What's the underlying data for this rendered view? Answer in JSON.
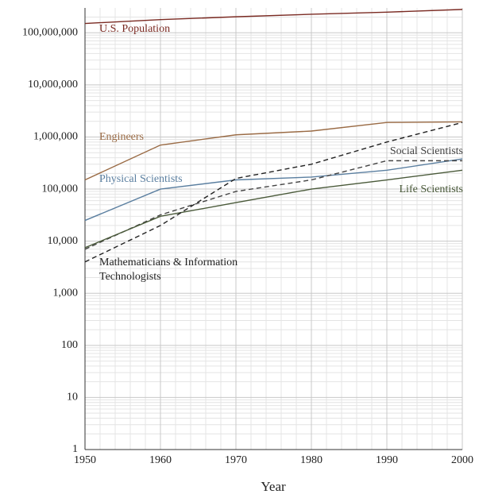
{
  "chart_data": {
    "type": "line",
    "x_label": "Year",
    "x": [
      1950,
      1960,
      1970,
      1980,
      1990,
      2000
    ],
    "xlim": [
      1950,
      2000
    ],
    "xticks": [
      1950,
      1960,
      1970,
      1980,
      1990,
      2000
    ],
    "ylim": [
      1,
      300000000
    ],
    "log_y": true,
    "grid": true,
    "minor_grid": true,
    "yticks": [
      1,
      10,
      100,
      {
        "value": 1000,
        "label": "1,000"
      },
      {
        "value": 10000,
        "label": "10,000"
      },
      {
        "value": 100000,
        "label": "100,000"
      },
      {
        "value": 1000000,
        "label": "1,000,000"
      },
      {
        "value": 10000000,
        "label": "10,000,000"
      },
      {
        "value": 100000000,
        "label": "100,000,000"
      }
    ],
    "series": [
      {
        "name": "U.S. Population",
        "color": "#7a2a22",
        "dashed": false,
        "values": [
          151000000,
          179000000,
          203000000,
          227000000,
          249000000,
          281000000
        ]
      },
      {
        "name": "Engineers",
        "color": "#9a6b45",
        "dashed": false,
        "values": [
          150000,
          700000,
          1100000,
          1300000,
          1900000,
          1950000
        ]
      },
      {
        "name": "Physical Scientists",
        "color": "#5b7fa0",
        "dashed": false,
        "values": [
          25000,
          100000,
          150000,
          170000,
          230000,
          380000
        ]
      },
      {
        "name": "Social Scientists",
        "color": "#444444",
        "dashed": true,
        "values": [
          7000,
          32000,
          90000,
          150000,
          350000,
          350000
        ]
      },
      {
        "name": "Life Scientists",
        "color": "#4a5a3a",
        "dashed": false,
        "values": [
          7500,
          30000,
          55000,
          100000,
          150000,
          230000
        ]
      },
      {
        "name": "Mathematicians & Information Technologists",
        "color": "#222222",
        "dashed": true,
        "values": [
          4000,
          20000,
          160000,
          300000,
          800000,
          1900000
        ]
      }
    ]
  }
}
